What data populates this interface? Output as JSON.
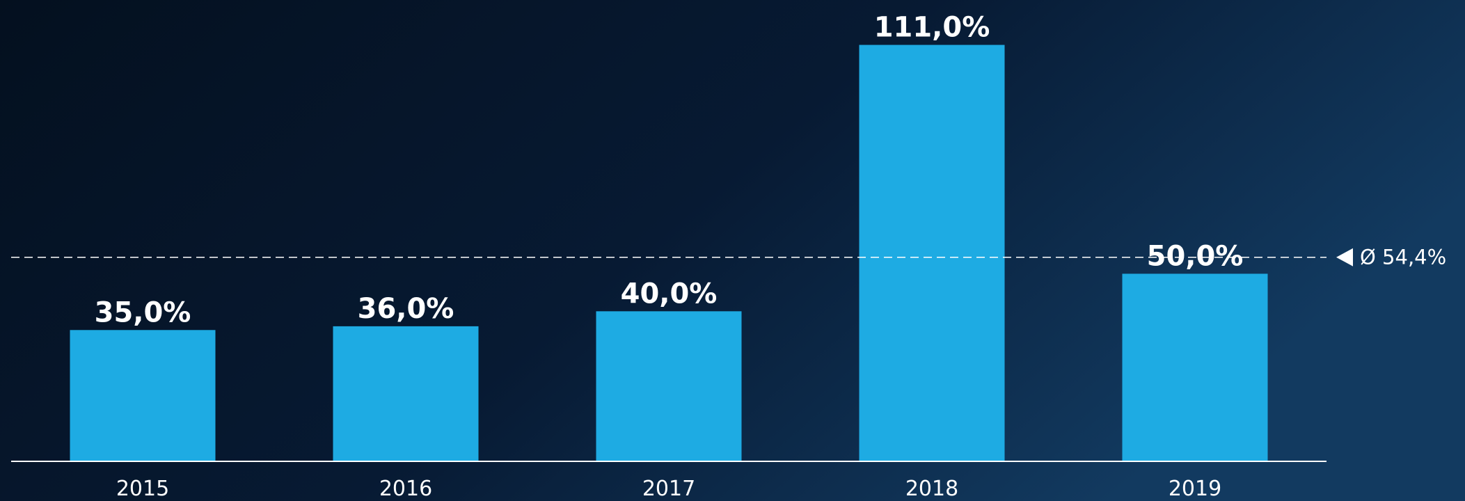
{
  "chart_data": {
    "type": "bar",
    "categories": [
      "2015",
      "2016",
      "2017",
      "2018",
      "2019"
    ],
    "values": [
      35,
      36,
      40,
      111,
      50
    ],
    "value_labels": [
      "35,0%",
      "36,0%",
      "40,0%",
      "111,0%",
      "50,0%"
    ],
    "color": "#1eabe3",
    "ylim": [
      0,
      120
    ],
    "average": 54.4,
    "average_label": "Ø 54,4%"
  }
}
